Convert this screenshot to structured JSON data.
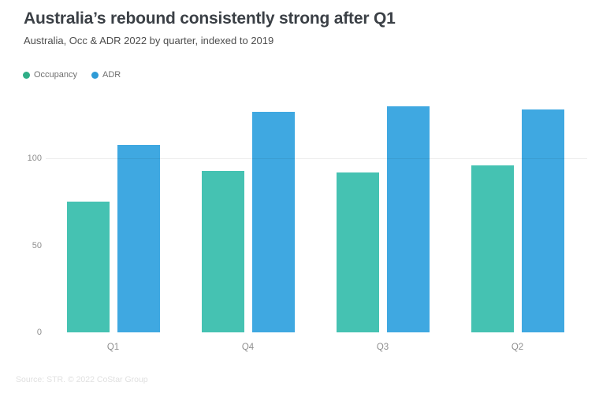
{
  "header": {
    "title": "Australia’s rebound consistently strong after Q1",
    "subtitle": "Australia, Occ & ADR 2022 by quarter, indexed to 2019"
  },
  "legend": {
    "items": [
      {
        "label": "Occupancy",
        "color": "#2fae87"
      },
      {
        "label": "ADR",
        "color": "#2e9bd6"
      }
    ]
  },
  "footer": {
    "attribution": "Source: STR. © 2022 CoStar Group"
  },
  "chart_data": {
    "type": "bar",
    "title": "Australia’s rebound consistently strong after Q1",
    "subtitle": "Australia, Occ & ADR 2022 by quarter, indexed to 2019",
    "categories": [
      "Q1",
      "Q4",
      "Q3",
      "Q2"
    ],
    "series": [
      {
        "name": "Occupancy",
        "color": "#45c2b2",
        "values": [
          75,
          93,
          92,
          96
        ]
      },
      {
        "name": "ADR",
        "color": "#3fa8e1",
        "values": [
          108,
          127,
          130,
          128
        ]
      }
    ],
    "xlabel": "",
    "ylabel": "",
    "yticks": [
      0,
      50,
      100
    ],
    "ylim": [
      0,
      135
    ],
    "reference_line": 100,
    "grid": "single horizontal reference line at 100 only",
    "legend_position": "top-left",
    "bar_color_note": "teal = Occupancy, blue = ADR"
  }
}
